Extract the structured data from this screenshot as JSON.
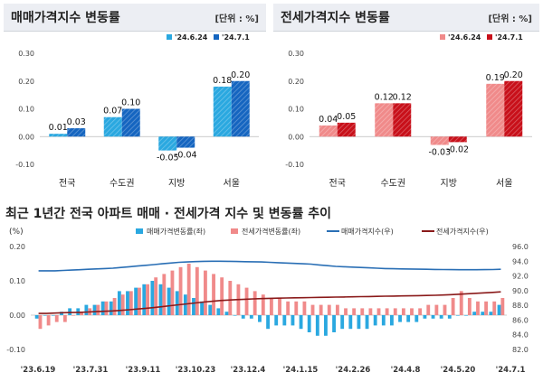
{
  "panels": {
    "left": {
      "title": "매매가격지수 변동률",
      "unit": "[단위 : %]"
    },
    "right": {
      "title": "전세가격지수 변동률",
      "unit": "[단위 : %]"
    },
    "bottom": {
      "title": "최근 1년간 전국 아파트 매매 · 전세가격 지수 및 변동률 추이"
    }
  },
  "colors": {
    "sale_prev": "#2aa8e0",
    "sale_curr": "#1565c0",
    "jeonse_prev": "#f08a8a",
    "jeonse_curr": "#c8101a",
    "sale_index_line": "#2a6fb5",
    "jeonse_index_line": "#8a1a1a"
  },
  "chart_data": [
    {
      "type": "bar",
      "title": "매매가격지수 변동률",
      "categories": [
        "전국",
        "수도권",
        "지방",
        "서울"
      ],
      "series": [
        {
          "name": "'24.6.24",
          "values": [
            0.01,
            0.07,
            -0.05,
            0.18
          ]
        },
        {
          "name": "'24.7.1",
          "values": [
            0.03,
            0.1,
            -0.04,
            0.2
          ]
        }
      ],
      "ylim": [
        -0.1,
        0.3
      ],
      "yticks": [
        "-0.10",
        "0.00",
        "0.10",
        "0.20",
        "0.30"
      ],
      "grid": true,
      "legend": "top-right"
    },
    {
      "type": "bar",
      "title": "전세가격지수 변동률",
      "categories": [
        "전국",
        "수도권",
        "지방",
        "서울"
      ],
      "series": [
        {
          "name": "'24.6.24",
          "values": [
            0.04,
            0.12,
            -0.03,
            0.19
          ]
        },
        {
          "name": "'24.7.1",
          "values": [
            0.05,
            0.12,
            -0.02,
            0.2
          ]
        }
      ],
      "ylim": [
        -0.1,
        0.3
      ],
      "yticks": [
        "-0.10",
        "0.00",
        "0.10",
        "0.20",
        "0.30"
      ],
      "grid": true,
      "legend": "top-right"
    },
    {
      "type": "bar",
      "title": "최근 1년간 전국 아파트 매매 · 전세가격 지수 및 변동률 추이",
      "ylabel_left": "(%)",
      "ylim_left": [
        -0.1,
        0.2
      ],
      "yticks_left": [
        "-0.10",
        "0.00",
        "0.10",
        "0.20"
      ],
      "ylim_right": [
        82.0,
        96.0
      ],
      "yticks_right": [
        "82.0",
        "84.0",
        "86.0",
        "88.0",
        "90.0",
        "92.0",
        "94.0",
        "96.0"
      ],
      "x_tick_labels": [
        "'23.6.19",
        "'23.7.31",
        "'23.9.11",
        "'23.10.23",
        "'23.12.4",
        "'24.1.15",
        "'24.2.26",
        "'24.4.8",
        "'24.5.20",
        "'24.7.1"
      ],
      "legend": "top",
      "series": [
        {
          "name": "매매가격변동률(좌)",
          "kind": "bar",
          "values": [
            -0.01,
            0.0,
            0.0,
            0.01,
            0.02,
            0.02,
            0.03,
            0.03,
            0.04,
            0.04,
            0.07,
            0.07,
            0.08,
            0.09,
            0.1,
            0.09,
            0.08,
            0.07,
            0.06,
            0.05,
            0.04,
            0.03,
            0.02,
            0.01,
            0.0,
            -0.01,
            -0.01,
            -0.02,
            -0.04,
            -0.03,
            -0.03,
            -0.03,
            -0.04,
            -0.05,
            -0.06,
            -0.06,
            -0.05,
            -0.04,
            -0.04,
            -0.04,
            -0.04,
            -0.03,
            -0.03,
            -0.03,
            -0.02,
            -0.02,
            -0.02,
            -0.01,
            -0.01,
            -0.01,
            -0.01,
            0.0,
            0.0,
            0.01,
            0.01,
            0.01,
            0.03
          ]
        },
        {
          "name": "전세가격변동률(좌)",
          "kind": "bar",
          "values": [
            -0.04,
            -0.03,
            -0.02,
            -0.02,
            0.0,
            0.01,
            0.02,
            0.03,
            0.04,
            0.05,
            0.06,
            0.07,
            0.08,
            0.09,
            0.11,
            0.12,
            0.13,
            0.14,
            0.15,
            0.14,
            0.13,
            0.12,
            0.11,
            0.1,
            0.09,
            0.08,
            0.07,
            0.06,
            0.05,
            0.05,
            0.04,
            0.04,
            0.04,
            0.03,
            0.03,
            0.03,
            0.03,
            0.02,
            0.02,
            0.02,
            0.02,
            0.02,
            0.02,
            0.02,
            0.02,
            0.02,
            0.02,
            0.03,
            0.03,
            0.03,
            0.05,
            0.07,
            0.05,
            0.04,
            0.04,
            0.04,
            0.05
          ]
        },
        {
          "name": "매매가격지수(우)",
          "kind": "line",
          "values": [
            92.7,
            92.7,
            92.7,
            92.75,
            92.8,
            92.85,
            92.9,
            92.95,
            93.0,
            93.05,
            93.15,
            93.25,
            93.35,
            93.45,
            93.55,
            93.65,
            93.75,
            93.85,
            93.9,
            93.95,
            93.98,
            94.0,
            94.0,
            93.98,
            93.96,
            93.94,
            93.92,
            93.9,
            93.85,
            93.8,
            93.75,
            93.7,
            93.65,
            93.6,
            93.5,
            93.4,
            93.3,
            93.25,
            93.2,
            93.15,
            93.1,
            93.05,
            93.0,
            92.98,
            92.96,
            92.94,
            92.92,
            92.9,
            92.88,
            92.87,
            92.86,
            92.85,
            92.85,
            92.85,
            92.86,
            92.87,
            92.9
          ]
        },
        {
          "name": "전세가격지수(우)",
          "kind": "line",
          "values": [
            86.9,
            86.9,
            86.95,
            87.0,
            87.02,
            87.05,
            87.1,
            87.15,
            87.2,
            87.25,
            87.32,
            87.4,
            87.5,
            87.6,
            87.7,
            87.82,
            87.95,
            88.08,
            88.2,
            88.32,
            88.45,
            88.55,
            88.65,
            88.72,
            88.78,
            88.83,
            88.88,
            88.92,
            88.95,
            88.98,
            89.0,
            89.02,
            89.04,
            89.06,
            89.08,
            89.1,
            89.12,
            89.14,
            89.16,
            89.18,
            89.2,
            89.22,
            89.24,
            89.26,
            89.28,
            89.3,
            89.32,
            89.35,
            89.37,
            89.4,
            89.45,
            89.52,
            89.58,
            89.64,
            89.7,
            89.76,
            89.84
          ]
        }
      ]
    }
  ]
}
